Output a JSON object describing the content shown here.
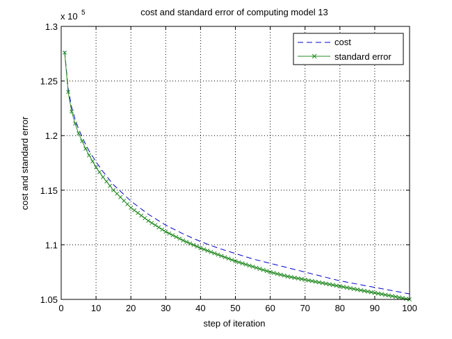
{
  "chart_data": {
    "type": "line",
    "title": "cost and standard error of computing model 13",
    "xlabel": "step of iteration",
    "ylabel": "cost and standard error",
    "y_exponent_label": "x 10",
    "y_exponent_power": "5",
    "xlim": [
      0,
      100
    ],
    "ylim": [
      1.05,
      1.3
    ],
    "xticks": [
      0,
      10,
      20,
      30,
      40,
      50,
      60,
      70,
      80,
      90,
      100
    ],
    "yticks": [
      1.05,
      1.1,
      1.15,
      1.2,
      1.25,
      1.3
    ],
    "xtick_labels": [
      "0",
      "10",
      "20",
      "30",
      "40",
      "50",
      "60",
      "70",
      "80",
      "90",
      "100"
    ],
    "ytick_labels": [
      "1.05",
      "1.1",
      "1.15",
      "1.2",
      "1.25",
      "1.3"
    ],
    "grid": true,
    "legend_position": "top-right",
    "series": [
      {
        "name": "cost",
        "color": "#0000cc",
        "style": "dashed",
        "marker": "none",
        "x": [
          1,
          2,
          3,
          4,
          5,
          6,
          7,
          8,
          10,
          12,
          15,
          20,
          25,
          30,
          35,
          40,
          45,
          50,
          55,
          60,
          65,
          70,
          75,
          80,
          85,
          90,
          95,
          100
        ],
        "values": [
          1.277,
          1.243,
          1.226,
          1.215,
          1.206,
          1.199,
          1.192,
          1.186,
          1.176,
          1.167,
          1.155,
          1.14,
          1.128,
          1.118,
          1.11,
          1.103,
          1.097,
          1.092,
          1.087,
          1.083,
          1.079,
          1.075,
          1.071,
          1.067,
          1.064,
          1.061,
          1.058,
          1.055
        ]
      },
      {
        "name": "standard error",
        "color": "#208a20",
        "style": "solid",
        "marker": "x",
        "x": [
          1,
          2,
          3,
          4,
          5,
          6,
          7,
          8,
          10,
          12,
          15,
          20,
          25,
          30,
          35,
          40,
          45,
          50,
          55,
          60,
          65,
          70,
          75,
          80,
          85,
          90,
          95,
          100
        ],
        "values": [
          1.276,
          1.24,
          1.222,
          1.211,
          1.202,
          1.195,
          1.188,
          1.182,
          1.171,
          1.162,
          1.15,
          1.134,
          1.122,
          1.112,
          1.104,
          1.097,
          1.091,
          1.085,
          1.08,
          1.075,
          1.071,
          1.068,
          1.065,
          1.062,
          1.059,
          1.056,
          1.053,
          1.05
        ]
      }
    ]
  }
}
